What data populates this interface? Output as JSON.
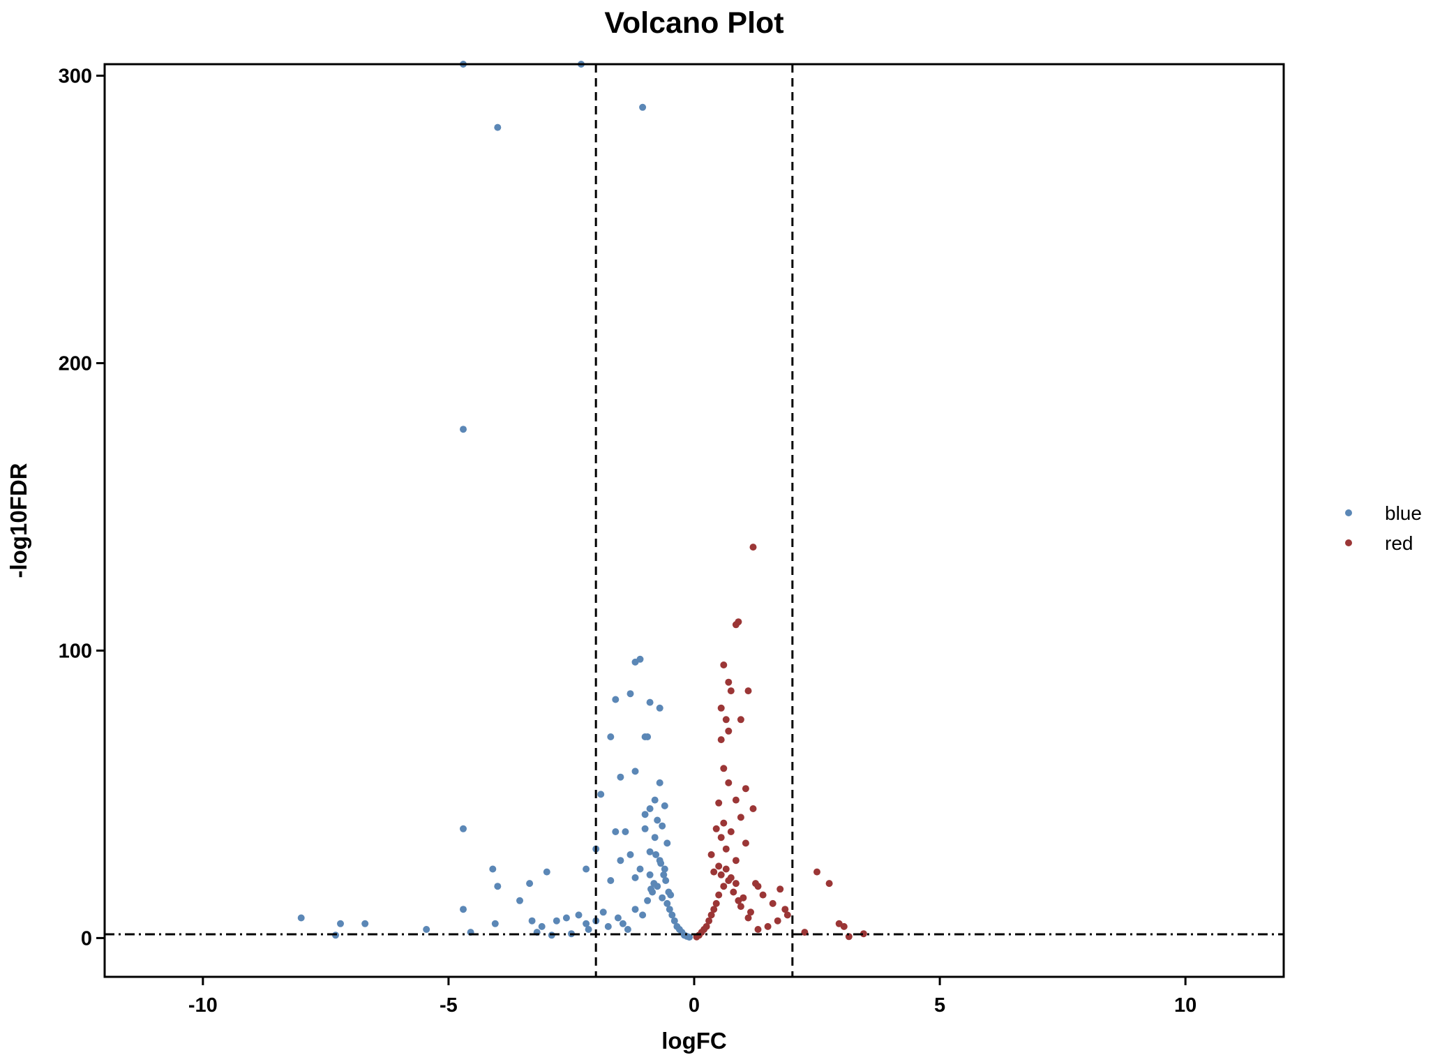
{
  "chart_data": {
    "type": "scatter",
    "title": "Volcano Plot",
    "xlabel": "logFC",
    "ylabel": "-log10FDR",
    "xlim": [
      -12,
      12
    ],
    "ylim": [
      -13.5,
      304
    ],
    "xticks": [
      -10,
      -5,
      0,
      5,
      10
    ],
    "yticks": [
      0,
      100,
      200,
      300
    ],
    "grid": false,
    "legend_position": "right",
    "thresholds": {
      "vertical_lines": [
        -2,
        2
      ],
      "horizontal_line": 1.3
    },
    "series": [
      {
        "name": "blue",
        "color": "#5b87b6",
        "points": [
          [
            -4.7,
            304
          ],
          [
            -2.3,
            304
          ],
          [
            -4.0,
            282
          ],
          [
            -1.05,
            289
          ],
          [
            -4.7,
            177
          ],
          [
            -1.2,
            96
          ],
          [
            -1.1,
            97
          ],
          [
            -1.3,
            85
          ],
          [
            -1.6,
            83
          ],
          [
            -0.9,
            82
          ],
          [
            -0.7,
            80
          ],
          [
            -1.7,
            70
          ],
          [
            -1.0,
            70
          ],
          [
            -0.95,
            70
          ],
          [
            -1.2,
            58
          ],
          [
            -1.5,
            56
          ],
          [
            -0.7,
            54
          ],
          [
            -1.9,
            50
          ],
          [
            -0.8,
            48
          ],
          [
            -0.6,
            46
          ],
          [
            -0.9,
            45
          ],
          [
            -1.0,
            43
          ],
          [
            -0.75,
            41
          ],
          [
            -0.65,
            39
          ],
          [
            -1.0,
            38
          ],
          [
            -1.4,
            37
          ],
          [
            -1.6,
            37
          ],
          [
            -0.8,
            35
          ],
          [
            -0.55,
            33
          ],
          [
            -2.0,
            31
          ],
          [
            -0.9,
            30
          ],
          [
            -1.3,
            29
          ],
          [
            -0.7,
            27
          ],
          [
            -1.5,
            27
          ],
          [
            -2.2,
            24
          ],
          [
            -1.1,
            24
          ],
          [
            -0.6,
            24
          ],
          [
            -0.9,
            22
          ],
          [
            -1.2,
            21
          ],
          [
            -1.7,
            20
          ],
          [
            -4.7,
            38
          ],
          [
            -4.1,
            24
          ],
          [
            -3.0,
            23
          ],
          [
            -4.0,
            18
          ],
          [
            -3.35,
            19
          ],
          [
            -3.55,
            13
          ],
          [
            -8.0,
            7
          ],
          [
            -7.2,
            5
          ],
          [
            -6.7,
            5
          ],
          [
            -5.45,
            3
          ],
          [
            -4.7,
            10
          ],
          [
            -4.55,
            2
          ],
          [
            -4.05,
            5
          ],
          [
            -3.3,
            6
          ],
          [
            -3.1,
            4
          ],
          [
            -2.8,
            6
          ],
          [
            -2.6,
            7
          ],
          [
            -2.35,
            8
          ],
          [
            -2.2,
            5
          ],
          [
            -2.15,
            3
          ],
          [
            -2.0,
            6
          ],
          [
            -1.85,
            9
          ],
          [
            -1.75,
            4
          ],
          [
            -1.55,
            7
          ],
          [
            -1.45,
            5
          ],
          [
            -1.35,
            3
          ],
          [
            -1.2,
            10
          ],
          [
            -1.05,
            8
          ],
          [
            -0.95,
            13
          ],
          [
            -0.85,
            16
          ],
          [
            -0.75,
            18
          ],
          [
            -0.65,
            14
          ],
          [
            -0.55,
            12
          ],
          [
            -0.5,
            10
          ],
          [
            -0.45,
            8
          ],
          [
            -0.4,
            6
          ],
          [
            -0.35,
            4
          ],
          [
            -0.3,
            3
          ],
          [
            -0.25,
            2
          ],
          [
            -0.2,
            1
          ],
          [
            -0.15,
            0.6
          ],
          [
            -0.1,
            0.3
          ],
          [
            -7.3,
            1
          ],
          [
            -2.9,
            1
          ],
          [
            -2.5,
            1.5
          ],
          [
            -3.2,
            2
          ],
          [
            -0.58,
            20
          ],
          [
            -0.62,
            22
          ],
          [
            -0.68,
            26
          ],
          [
            -0.78,
            29
          ],
          [
            -0.82,
            19
          ],
          [
            -0.88,
            17
          ],
          [
            -0.48,
            15
          ],
          [
            -0.52,
            16
          ]
        ]
      },
      {
        "name": "red",
        "color": "#9b3636",
        "points": [
          [
            1.2,
            136
          ],
          [
            0.85,
            109
          ],
          [
            0.9,
            110
          ],
          [
            0.6,
            95
          ],
          [
            0.7,
            89
          ],
          [
            0.75,
            86
          ],
          [
            1.1,
            86
          ],
          [
            0.55,
            80
          ],
          [
            0.65,
            76
          ],
          [
            0.95,
            76
          ],
          [
            0.7,
            72
          ],
          [
            0.55,
            69
          ],
          [
            0.6,
            59
          ],
          [
            0.7,
            54
          ],
          [
            1.05,
            52
          ],
          [
            0.85,
            48
          ],
          [
            0.5,
            47
          ],
          [
            1.2,
            45
          ],
          [
            0.95,
            42
          ],
          [
            0.6,
            40
          ],
          [
            0.45,
            38
          ],
          [
            0.75,
            37
          ],
          [
            0.55,
            35
          ],
          [
            1.05,
            33
          ],
          [
            0.65,
            31
          ],
          [
            0.35,
            29
          ],
          [
            0.85,
            27
          ],
          [
            0.5,
            25
          ],
          [
            0.4,
            23
          ],
          [
            1.25,
            19
          ],
          [
            1.3,
            18
          ],
          [
            1.75,
            17
          ],
          [
            1.4,
            15
          ],
          [
            1.6,
            12
          ],
          [
            1.85,
            10
          ],
          [
            2.5,
            23
          ],
          [
            2.75,
            19
          ],
          [
            2.95,
            5
          ],
          [
            3.05,
            4
          ],
          [
            2.25,
            2
          ],
          [
            3.15,
            0.5
          ],
          [
            3.45,
            1.5
          ],
          [
            1.9,
            8
          ],
          [
            1.7,
            6
          ],
          [
            1.5,
            4
          ],
          [
            1.3,
            3
          ],
          [
            1.1,
            7
          ],
          [
            0.95,
            11
          ],
          [
            0.9,
            13
          ],
          [
            0.8,
            16
          ],
          [
            0.7,
            20
          ],
          [
            0.6,
            18
          ],
          [
            0.5,
            15
          ],
          [
            0.45,
            12
          ],
          [
            0.4,
            10
          ],
          [
            0.35,
            8
          ],
          [
            0.3,
            6
          ],
          [
            0.25,
            4
          ],
          [
            0.2,
            3
          ],
          [
            0.15,
            2
          ],
          [
            0.1,
            1
          ],
          [
            0.05,
            0.4
          ],
          [
            0.55,
            22
          ],
          [
            0.65,
            24
          ],
          [
            0.75,
            21
          ],
          [
            0.85,
            19
          ],
          [
            1.0,
            14
          ],
          [
            1.15,
            9
          ]
        ]
      }
    ]
  }
}
